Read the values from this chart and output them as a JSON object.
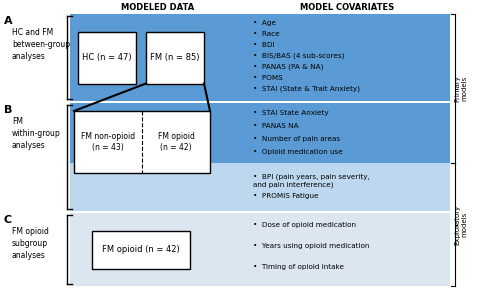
{
  "title_modeled": "MODELED DATA",
  "title_covariates": "MODEL COVARIATES",
  "section_A_label": "A",
  "section_A_text": "HC and FM\nbetween-group\nanalyses",
  "section_B_label": "B",
  "section_B_text": "FM\nwithin-group\nanalyses",
  "section_C_label": "C",
  "section_C_text": "FM opioid\nsubgroup\nanalyses",
  "box_HC": "HC (n = 47)",
  "box_FM": "FM (n = 85)",
  "box_FM_non_opioid": "FM non-opioid\n(n = 43)",
  "box_FM_opioid_B": "FM opioid\n(n = 42)",
  "box_FM_opioid_C": "FM opioid (n = 42)",
  "covariates_A": [
    "Age",
    "Race",
    "BDI",
    "BIS/BAS (4 sub-scores)",
    "PANAS (PA & NA)",
    "POMS",
    "STAI (State & Trait Anxiety)"
  ],
  "covariates_B_primary": [
    "STAI State Anxiety",
    "PANAS NA",
    "Number of pain areas",
    "Opioid medication use"
  ],
  "covariates_B_exploratory": [
    "BPI (pain years, pain severity,\nand pain interference)",
    "PROMIS Fatigue"
  ],
  "covariates_C": [
    "Dose of opioid medication",
    "Years using opioid medication",
    "Timing of opioid intake"
  ],
  "primary_label": "Primary\nmodels",
  "exploratory_label": "Exploratory\nmodels",
  "bg_color_A": "#5b9bd5",
  "bg_color_B_top": "#5b9bd5",
  "bg_color_B_bottom": "#bdd7ee",
  "bg_color_C": "#dce6f1",
  "white": "#ffffff",
  "black": "#000000"
}
